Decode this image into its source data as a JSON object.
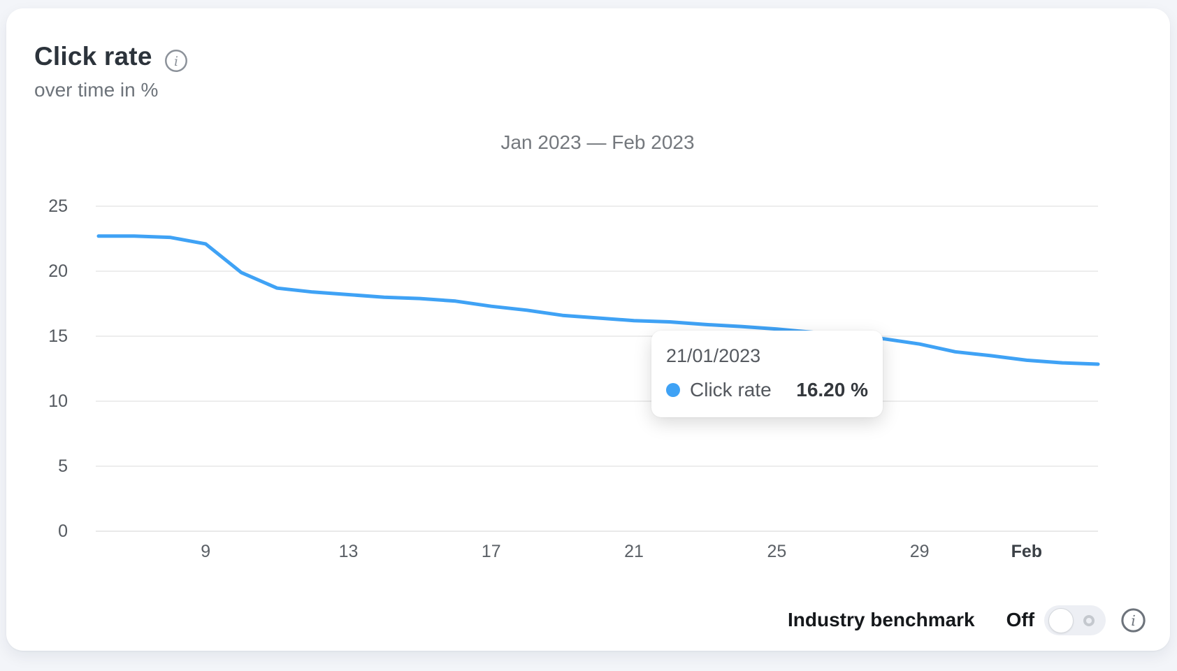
{
  "header": {
    "title": "Click rate",
    "subtitle": "over time in %"
  },
  "chart_data": {
    "type": "line",
    "title": "Jan 2023 — Feb 2023",
    "dates": [
      "06/01/2023",
      "07/01/2023",
      "08/01/2023",
      "09/01/2023",
      "10/01/2023",
      "11/01/2023",
      "12/01/2023",
      "13/01/2023",
      "14/01/2023",
      "15/01/2023",
      "16/01/2023",
      "17/01/2023",
      "18/01/2023",
      "19/01/2023",
      "20/01/2023",
      "21/01/2023",
      "22/01/2023",
      "23/01/2023",
      "24/01/2023",
      "25/01/2023",
      "26/01/2023",
      "27/01/2023",
      "28/01/2023",
      "29/01/2023",
      "30/01/2023",
      "31/01/2023",
      "01/02/2023",
      "02/02/2023",
      "03/02/2023"
    ],
    "series": [
      {
        "name": "Click rate",
        "color": "#3fa2f5",
        "values": [
          22.7,
          22.7,
          22.6,
          22.1,
          19.9,
          18.7,
          18.4,
          18.2,
          18.0,
          17.9,
          17.7,
          17.3,
          17.0,
          16.6,
          16.4,
          16.2,
          16.1,
          15.9,
          15.75,
          15.55,
          15.3,
          15.0,
          14.8,
          14.4,
          13.8,
          13.5,
          13.15,
          12.95,
          12.85
        ]
      }
    ],
    "x_ticks": [
      {
        "label": "9",
        "index": 3,
        "bold": false
      },
      {
        "label": "13",
        "index": 7,
        "bold": false
      },
      {
        "label": "17",
        "index": 11,
        "bold": false
      },
      {
        "label": "21",
        "index": 15,
        "bold": false
      },
      {
        "label": "25",
        "index": 19,
        "bold": false
      },
      {
        "label": "29",
        "index": 23,
        "bold": false
      },
      {
        "label": "Feb",
        "index": 26,
        "bold": true
      }
    ],
    "y_ticks": [
      0,
      5,
      10,
      15,
      20,
      25
    ],
    "ylim": [
      0,
      25
    ],
    "xlabel": "",
    "ylabel": "over time in %",
    "grid": "horizontal",
    "legend_position": "none"
  },
  "tooltip": {
    "date": "21/01/2023",
    "series_label": "Click rate",
    "value": "16.20 %"
  },
  "footer": {
    "benchmark_label": "Industry benchmark",
    "toggle_state": "Off",
    "toggle_on": false
  },
  "colors": {
    "line": "#3fa2f5",
    "page_background": "#f3f5f9",
    "card_background": "#ffffff",
    "gridline": "#ededed",
    "axis_text": "#54595f",
    "title_text": "#2c333b"
  }
}
